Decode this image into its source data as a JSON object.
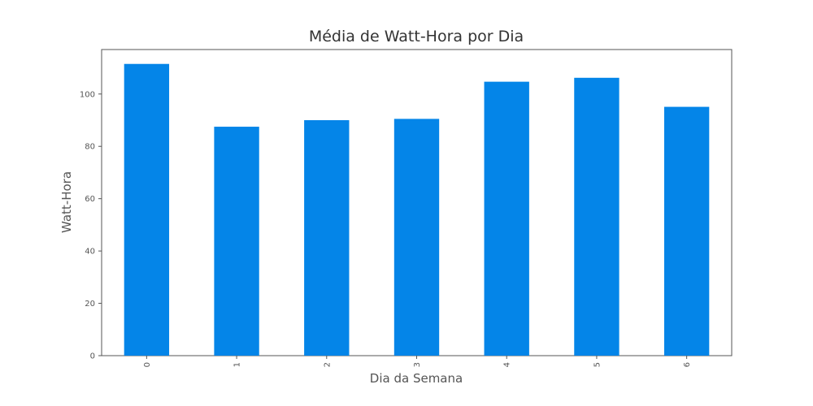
{
  "chart_data": {
    "type": "bar",
    "title": "Média de Watt-Hora por Dia",
    "xlabel": "Dia da Semana",
    "ylabel": "Watt-Hora",
    "categories": [
      "0",
      "1",
      "2",
      "3",
      "4",
      "5",
      "6"
    ],
    "values": [
      111.5,
      87.5,
      90,
      90.5,
      104.7,
      106.2,
      95.1
    ],
    "ylim": [
      0,
      117
    ],
    "yticks": [
      0,
      20,
      40,
      60,
      80,
      100
    ],
    "grid": false,
    "bar_color": "#0485e8",
    "xtick_rotation": "vertical"
  }
}
